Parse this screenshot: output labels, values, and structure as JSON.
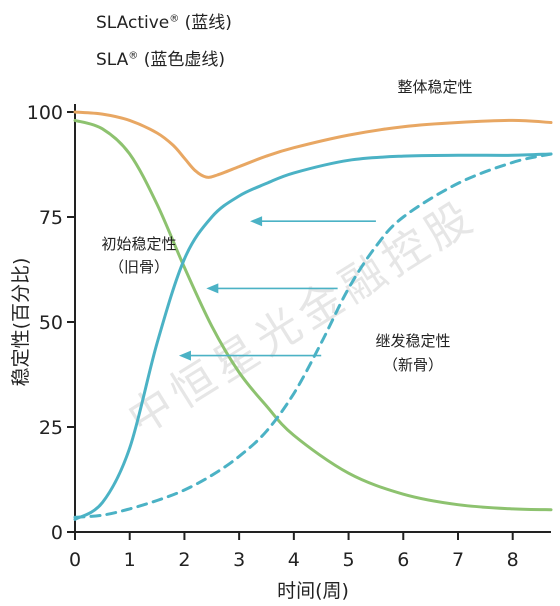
{
  "chart_data": {
    "type": "line",
    "legend_lines": [
      {
        "name": "SLActive",
        "mark": "®",
        "suffix": " (蓝线)"
      },
      {
        "name": "SLA",
        "mark": "®",
        "suffix": " (蓝色虚线)"
      }
    ],
    "xlabel": "时间(周)",
    "ylabel": "稳定性(百分比)",
    "xlim": [
      0,
      8.7
    ],
    "ylim": [
      0,
      100
    ],
    "xticks": [
      0,
      1,
      2,
      3,
      4,
      5,
      6,
      7,
      8
    ],
    "yticks": [
      0,
      25,
      50,
      75,
      100
    ],
    "annotations": {
      "overall": "整体稳定性",
      "primary": [
        "初始稳定性",
        "（旧骨）"
      ],
      "secondary": [
        "继发稳定性",
        "（新骨）"
      ]
    },
    "arrows": [
      {
        "from": [
          5.5,
          74
        ],
        "to": [
          3.2,
          74
        ]
      },
      {
        "from": [
          4.8,
          58
        ],
        "to": [
          2.4,
          58
        ]
      },
      {
        "from": [
          4.5,
          42
        ],
        "to": [
          1.9,
          42
        ]
      }
    ],
    "series": [
      {
        "key": "overall",
        "color": "#E8A763",
        "style": "solid",
        "x": [
          0,
          0.5,
          1.0,
          1.5,
          1.8,
          2.0,
          2.2,
          2.4,
          2.6,
          3.0,
          3.5,
          4.0,
          5.0,
          6.0,
          7.0,
          8.0,
          8.7
        ],
        "y": [
          100,
          99.5,
          98,
          95,
          92,
          89,
          86,
          84.5,
          85,
          87,
          89.5,
          91.5,
          94.5,
          96.5,
          97.5,
          98,
          97.5
        ]
      },
      {
        "key": "primary",
        "color": "#8DC26F",
        "style": "solid",
        "x": [
          0,
          0.5,
          1.0,
          1.5,
          2.0,
          2.5,
          3.0,
          3.5,
          4.0,
          5.0,
          6.0,
          7.0,
          8.0,
          8.7
        ],
        "y": [
          98,
          96,
          90,
          78,
          63,
          49,
          38,
          30,
          23,
          14,
          9,
          6.5,
          5.5,
          5.3
        ]
      },
      {
        "key": "slactive",
        "color": "#4BB2C5",
        "style": "solid",
        "x": [
          0,
          0.5,
          1.0,
          1.5,
          2.0,
          2.5,
          3.0,
          3.5,
          4.0,
          5.0,
          6.0,
          7.0,
          8.0,
          8.7
        ],
        "y": [
          3,
          7,
          20,
          45,
          65,
          75,
          80,
          83,
          85.5,
          88.5,
          89.5,
          89.7,
          89.7,
          90
        ]
      },
      {
        "key": "sla",
        "color": "#4BB2C5",
        "style": "dashed",
        "x": [
          0,
          0.5,
          1.0,
          1.5,
          2.0,
          2.5,
          3.0,
          3.5,
          4.0,
          4.5,
          5.0,
          5.5,
          6.0,
          7.0,
          8.0,
          8.7
        ],
        "y": [
          3.5,
          4,
          5.5,
          7.5,
          10,
          13.5,
          18,
          24,
          33,
          45,
          58,
          68,
          75,
          83,
          88,
          90
        ]
      }
    ]
  },
  "watermark": "中恒星光金融控股",
  "colors": {
    "axis": "#222222",
    "arrow": "#4BB2C5",
    "watermark": "#c9c9c9"
  }
}
